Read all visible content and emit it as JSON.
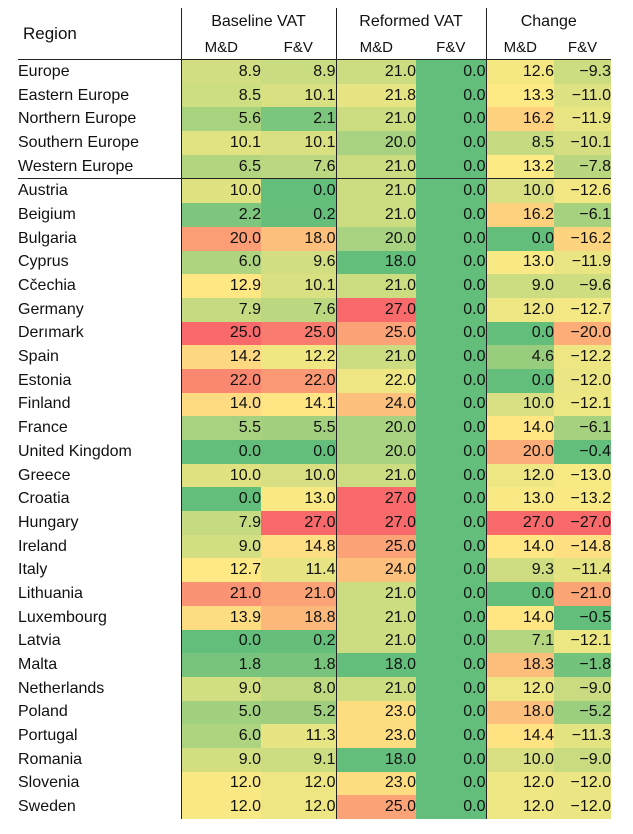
{
  "chart_data": {
    "type": "table",
    "columns": {
      "region": "Region",
      "groups": [
        "Baseline VAT",
        "Reformed VAT",
        "Change"
      ],
      "sub": [
        "M&D",
        "F&V"
      ]
    },
    "value_format": "one decimal; Change F&V column printed with sign",
    "rows": [
      {
        "region": "Europe",
        "values": [
          8.9,
          8.9,
          21.0,
          0.0,
          12.6,
          -9.3
        ]
      },
      {
        "region": "Eastern Europe",
        "values": [
          8.5,
          10.1,
          21.8,
          0.0,
          13.3,
          -11.0
        ]
      },
      {
        "region": "Northern Europe",
        "values": [
          5.6,
          2.1,
          21.0,
          0.0,
          16.2,
          -11.9
        ]
      },
      {
        "region": "Southern Europe",
        "values": [
          10.1,
          10.1,
          20.0,
          0.0,
          8.5,
          -10.1
        ]
      },
      {
        "region": "Western Europe",
        "values": [
          6.5,
          7.6,
          21.0,
          0.0,
          13.2,
          -7.8
        ]
      },
      {
        "region": "Austria",
        "values": [
          10.0,
          0.0,
          21.0,
          0.0,
          10.0,
          -12.6
        ]
      },
      {
        "region": "Beigium",
        "values": [
          2.2,
          0.2,
          21.0,
          0.0,
          16.2,
          -6.1
        ]
      },
      {
        "region": "Bulgaria",
        "values": [
          20.0,
          18.0,
          20.0,
          0.0,
          0.0,
          -16.2
        ]
      },
      {
        "region": "Cyprus",
        "values": [
          6.0,
          9.6,
          18.0,
          0.0,
          13.0,
          -11.9
        ]
      },
      {
        "region": "Cčechia",
        "values": [
          12.9,
          10.1,
          21.0,
          0.0,
          9.0,
          -9.6
        ]
      },
      {
        "region": "Germany",
        "values": [
          7.9,
          7.6,
          27.0,
          0.0,
          12.0,
          -12.7
        ]
      },
      {
        "region": "Derımark",
        "values": [
          25.0,
          25.0,
          25.0,
          0.0,
          0.0,
          -20.0
        ]
      },
      {
        "region": "Spain",
        "values": [
          14.2,
          12.2,
          21.0,
          0.0,
          4.6,
          -12.2
        ]
      },
      {
        "region": "Estonia",
        "values": [
          22.0,
          22.0,
          22.0,
          0.0,
          0.0,
          -12.0
        ]
      },
      {
        "region": "Finland",
        "values": [
          14.0,
          14.1,
          24.0,
          0.0,
          10.0,
          -12.1
        ]
      },
      {
        "region": "France",
        "values": [
          5.5,
          5.5,
          20.0,
          0.0,
          14.0,
          -6.1
        ]
      },
      {
        "region": "United Kingdom",
        "values": [
          0.0,
          0.0,
          20.0,
          0.0,
          20.0,
          -0.4
        ]
      },
      {
        "region": "Greece",
        "values": [
          10.0,
          10.0,
          21.0,
          0.0,
          12.0,
          -13.0
        ]
      },
      {
        "region": "Croatia",
        "values": [
          0.0,
          13.0,
          27.0,
          0.0,
          13.0,
          -13.2
        ]
      },
      {
        "region": "Hungary",
        "values": [
          7.9,
          27.0,
          27.0,
          0.0,
          27.0,
          -27.0
        ]
      },
      {
        "region": "Ireland",
        "values": [
          9.0,
          14.8,
          25.0,
          0.0,
          14.0,
          -14.8
        ]
      },
      {
        "region": "Italy",
        "values": [
          12.7,
          11.4,
          24.0,
          0.0,
          9.3,
          -11.4
        ]
      },
      {
        "region": "Lithuania",
        "values": [
          21.0,
          21.0,
          21.0,
          0.0,
          0.0,
          -21.0
        ]
      },
      {
        "region": "Luxembourg",
        "values": [
          13.9,
          18.8,
          21.0,
          0.0,
          14.0,
          -0.5
        ]
      },
      {
        "region": "Latvia",
        "values": [
          0.0,
          0.2,
          21.0,
          0.0,
          7.1,
          -12.1
        ]
      },
      {
        "region": "Malta",
        "values": [
          1.8,
          1.8,
          18.0,
          0.0,
          18.3,
          -1.8
        ]
      },
      {
        "region": "Netherlands",
        "values": [
          9.0,
          8.0,
          21.0,
          0.0,
          12.0,
          -9.0
        ]
      },
      {
        "region": "Poland",
        "values": [
          5.0,
          5.2,
          23.0,
          0.0,
          18.0,
          -5.2
        ]
      },
      {
        "region": "Portugal",
        "values": [
          6.0,
          11.3,
          23.0,
          0.0,
          14.4,
          -11.3
        ]
      },
      {
        "region": "Romania",
        "values": [
          9.0,
          9.1,
          18.0,
          0.0,
          10.0,
          -9.0
        ]
      },
      {
        "region": "Slovenia",
        "values": [
          12.0,
          12.0,
          23.0,
          0.0,
          12.0,
          -12.0
        ]
      },
      {
        "region": "Sweden",
        "values": [
          12.0,
          12.0,
          25.0,
          0.0,
          12.0,
          -12.0
        ]
      }
    ],
    "color_scale": {
      "low": "#63be7b",
      "mid": "#ffeb84",
      "high": "#f8696b"
    }
  }
}
